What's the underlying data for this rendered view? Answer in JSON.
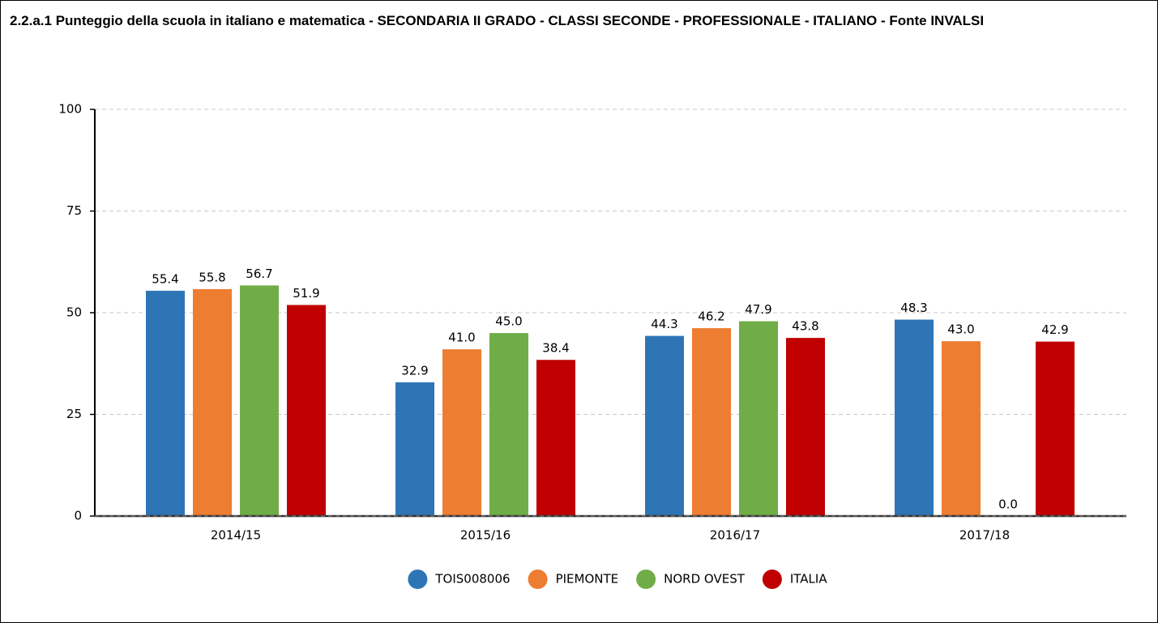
{
  "chart_data": {
    "type": "bar",
    "title": "2.2.a.1 Punteggio della scuola in italiano e matematica - SECONDARIA II GRADO - CLASSI SECONDE - PROFESSIONALE - ITALIANO - Fonte INVALSI",
    "categories": [
      "2014/15",
      "2015/16",
      "2016/17",
      "2017/18"
    ],
    "series": [
      {
        "name": "TOIS008006",
        "color": "#2e75b6",
        "values": [
          55.4,
          32.9,
          44.3,
          48.3
        ],
        "value_labels": [
          "55.4",
          "32.9",
          "44.3",
          "48.3"
        ]
      },
      {
        "name": "PIEMONTE",
        "color": "#ed7d31",
        "values": [
          55.8,
          41.0,
          46.2,
          43.0
        ],
        "value_labels": [
          "55.8",
          "41.0",
          "46.2",
          "43.0"
        ]
      },
      {
        "name": "NORD OVEST",
        "color": "#70ad47",
        "values": [
          56.7,
          45.0,
          47.9,
          0.0
        ],
        "value_labels": [
          "56.7",
          "45.0",
          "47.9",
          "0.0"
        ]
      },
      {
        "name": "ITALIA",
        "color": "#c00000",
        "values": [
          51.9,
          38.4,
          43.8,
          42.9
        ],
        "value_labels": [
          "51.9",
          "38.4",
          "43.8",
          "42.9"
        ]
      }
    ],
    "ylim": [
      0,
      100
    ],
    "yticks": [
      0,
      25,
      50,
      75,
      100
    ],
    "grid": true,
    "legend": "bottom"
  }
}
